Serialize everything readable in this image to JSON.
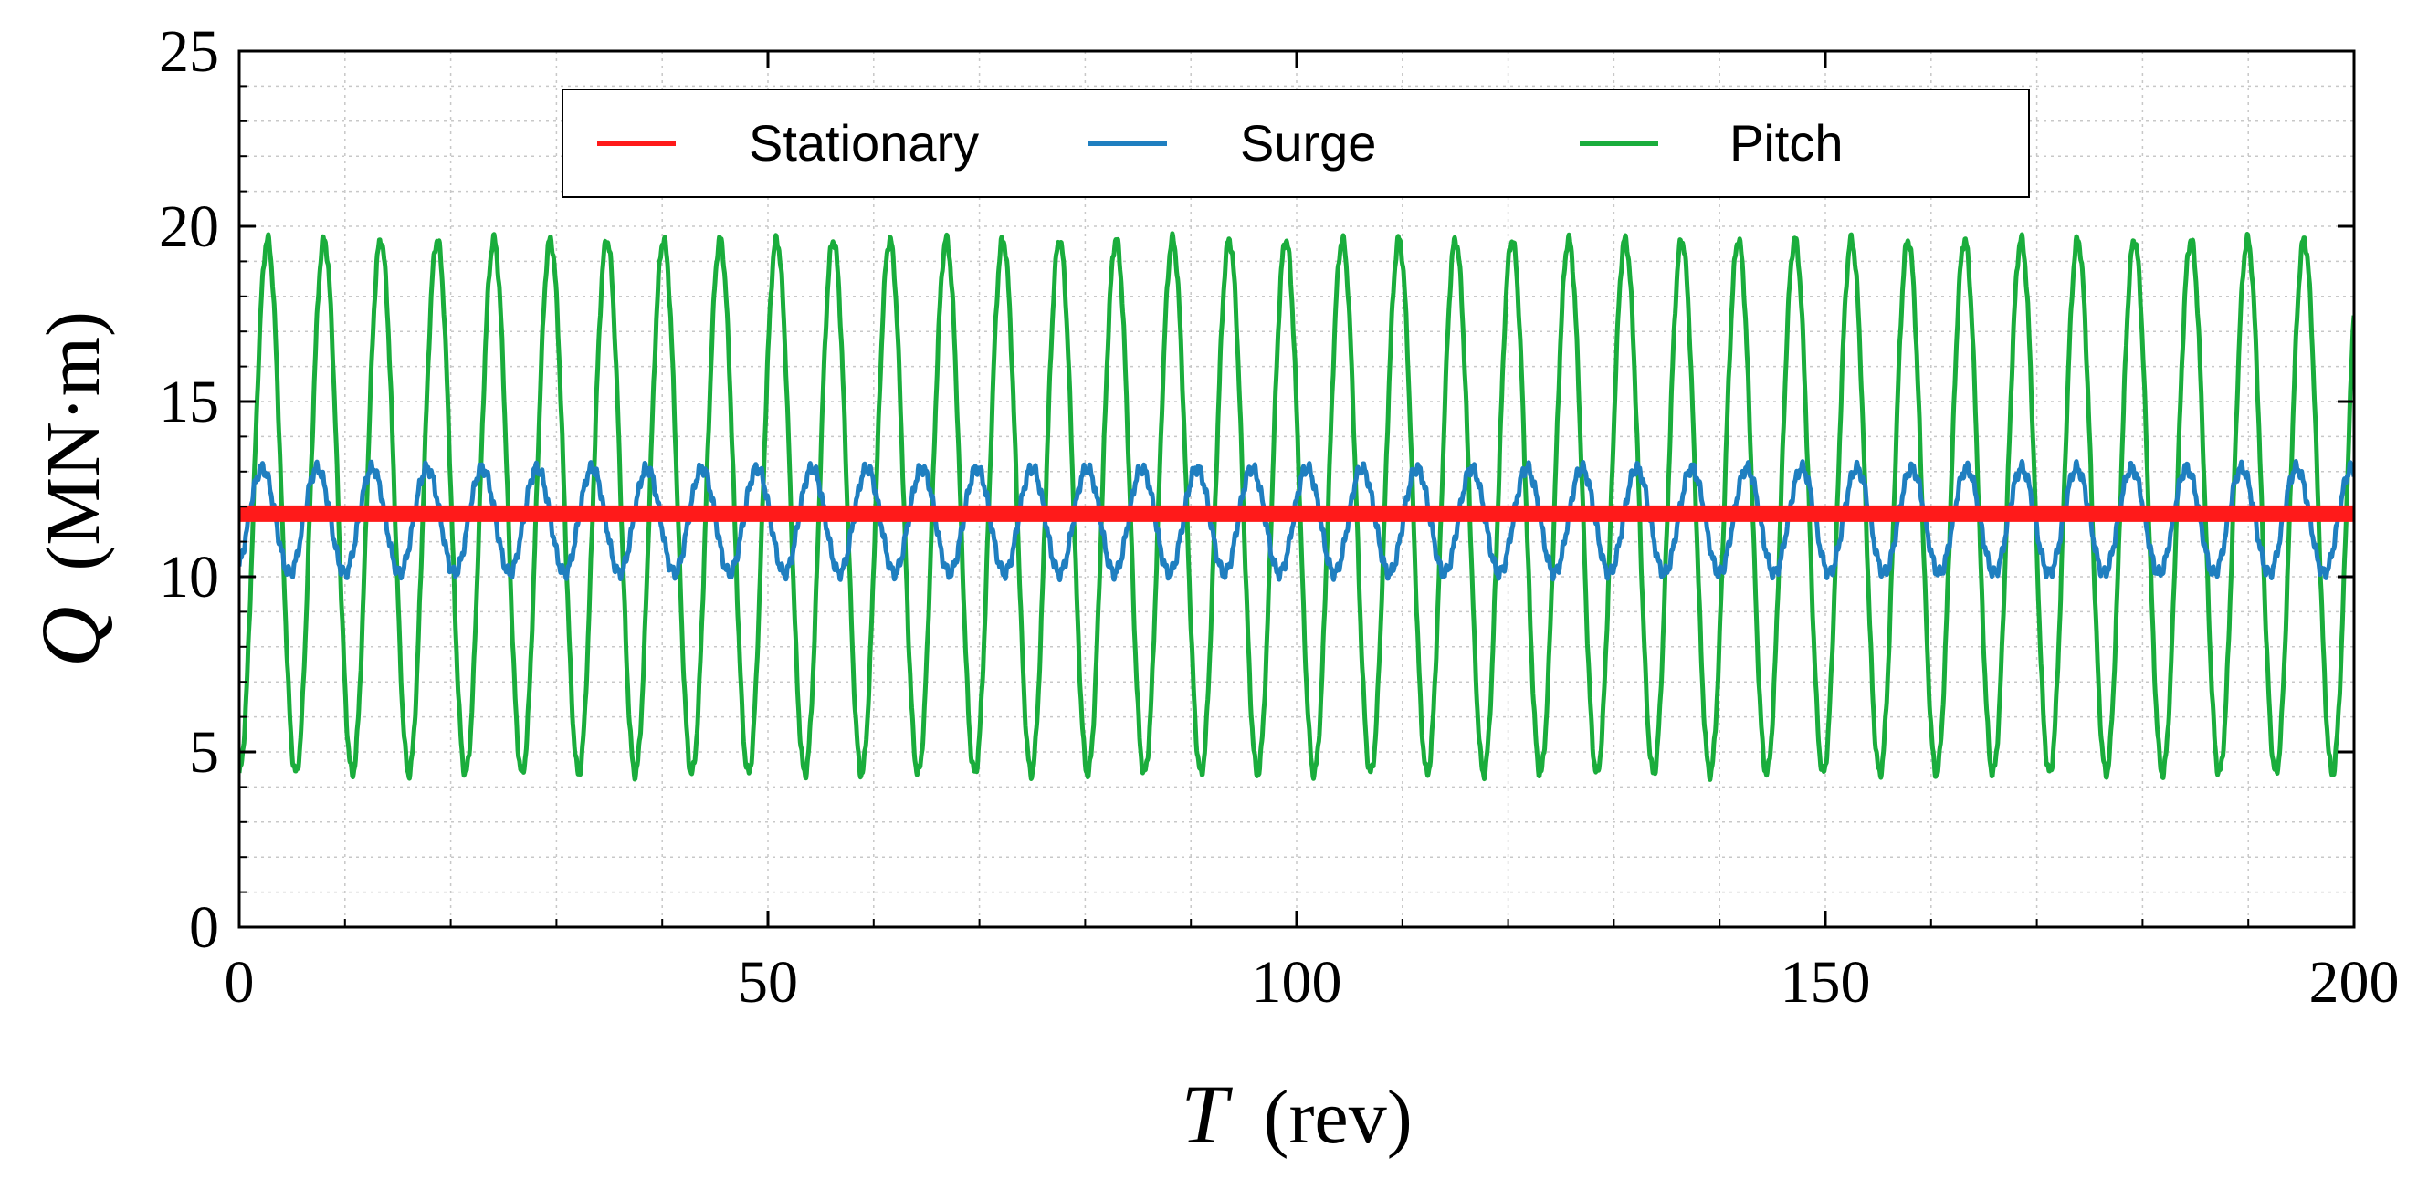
{
  "chart_data": {
    "type": "line",
    "xlabel": {
      "symbol": "T",
      "unit": "(rev)"
    },
    "ylabel": {
      "symbol": "Q",
      "unit": "(MN·m)"
    },
    "xlim": [
      0,
      200
    ],
    "ylim": [
      0,
      25
    ],
    "x_ticks": [
      0,
      50,
      100,
      150,
      200
    ],
    "x_tick_labels": [
      "0",
      "50",
      "100",
      "150",
      "200"
    ],
    "y_ticks": [
      0,
      5,
      10,
      15,
      20,
      25
    ],
    "y_tick_labels": [
      "0",
      "5",
      "10",
      "15",
      "20",
      "25"
    ],
    "grid": true,
    "legend_position": "top-center",
    "series": [
      {
        "name": "Stationary",
        "color": "#ff1a1a",
        "kind": "constant",
        "mean": 11.8,
        "amplitude": 0.0,
        "period_rev": 0
      },
      {
        "name": "Surge",
        "color": "#1f7fc0",
        "kind": "sinusoid",
        "mean": 11.6,
        "amplitude": 1.5,
        "period_rev": 5.2,
        "start_value": 10.3
      },
      {
        "name": "Pitch",
        "color": "#1aad3c",
        "kind": "sinusoid",
        "mean": 12.0,
        "amplitude": 7.6,
        "period_rev": 5.35,
        "start_value": 4.4
      }
    ]
  }
}
